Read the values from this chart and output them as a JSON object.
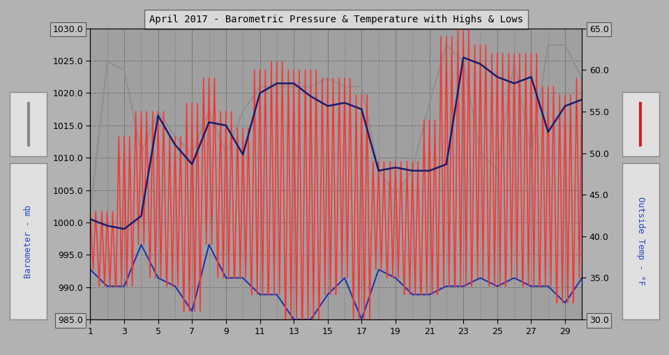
{
  "title": "April 2017 - Barometric Pressure & Temperature with Highs & Lows",
  "ylabel_left": "Barometer - mb",
  "ylabel_right": "Outside Temp - °F",
  "ylim_left": [
    985.0,
    1030.0
  ],
  "ylim_right": [
    30.0,
    65.0
  ],
  "yticks_left": [
    985.0,
    990.0,
    995.0,
    1000.0,
    1005.0,
    1010.0,
    1015.0,
    1020.0,
    1025.0,
    1030.0
  ],
  "yticks_right": [
    30.0,
    35.0,
    40.0,
    45.0,
    50.0,
    55.0,
    60.0,
    65.0
  ],
  "xticks": [
    1,
    3,
    5,
    7,
    9,
    11,
    13,
    15,
    17,
    19,
    21,
    23,
    25,
    27,
    29
  ],
  "xlim": [
    1,
    30
  ],
  "bg_color": "#b2b2b2",
  "plot_bg_color": "#a0a0a0",
  "grid_color": "#707070",
  "title_box_color": "#d8d8d8",
  "baro_color": "#1a1a6e",
  "temp_red_color": "#ff3333",
  "temp_gray_color": "#909090",
  "temp_blue_color": "#2233aa",
  "legend_box_color": "#e0e0e0",
  "baro_data": [
    1000.5,
    999.5,
    999.0,
    1001.0,
    1016.5,
    1012.0,
    1009.0,
    1015.5,
    1015.0,
    1010.5,
    1020.0,
    1021.5,
    1021.5,
    1019.5,
    1018.0,
    1018.5,
    1017.5,
    1008.0,
    1008.5,
    1008.0,
    1008.0,
    1009.0,
    1025.5,
    1024.5,
    1022.5,
    1021.5,
    1022.5,
    1014.0,
    1018.0,
    1019.0
  ],
  "temp_high_F": [
    43,
    61,
    60,
    50,
    55,
    52,
    50,
    55,
    50,
    55,
    58,
    58,
    58,
    58,
    59,
    58,
    58,
    48,
    45,
    48,
    56,
    63,
    61,
    50,
    48,
    61,
    50,
    63,
    63,
    59
  ],
  "temp_low_F": [
    36,
    34,
    34,
    39,
    35,
    34,
    31,
    39,
    35,
    35,
    33,
    33,
    30,
    30,
    33,
    35,
    30,
    36,
    35,
    33,
    33,
    34,
    34,
    35,
    34,
    35,
    34,
    34,
    32,
    35
  ],
  "red_high_F": [
    43,
    43,
    52,
    55,
    55,
    52,
    56,
    59,
    55,
    53,
    60,
    61,
    60,
    60,
    59,
    59,
    57,
    49,
    49,
    49,
    54,
    64,
    65,
    63,
    62,
    62,
    62,
    58,
    57,
    59
  ],
  "red_low_F": [
    36,
    34,
    34,
    39,
    35,
    34,
    31,
    39,
    35,
    35,
    33,
    33,
    30,
    30,
    33,
    35,
    30,
    36,
    35,
    33,
    33,
    34,
    34,
    35,
    34,
    35,
    34,
    34,
    32,
    35
  ]
}
